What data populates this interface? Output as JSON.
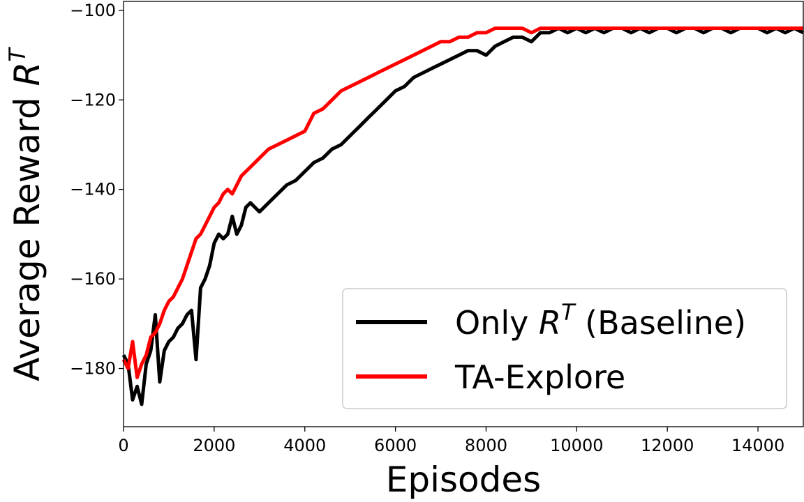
{
  "chart_data": {
    "type": "line",
    "xlabel": "Episodes",
    "ylabel": {
      "base": "Average Reward ",
      "var": "R",
      "sup": "T"
    },
    "xlim": [
      0,
      15000
    ],
    "ylim": [
      -193,
      -98
    ],
    "xticks": [
      0,
      2000,
      4000,
      6000,
      8000,
      10000,
      12000,
      14000
    ],
    "yticks": [
      -180,
      -160,
      -140,
      -120,
      -100
    ],
    "ytick_labels": [
      "−180",
      "−160",
      "−140",
      "−120",
      "−100"
    ],
    "grid": false,
    "legend_position": "lower-right",
    "series": [
      {
        "name_parts": {
          "pre": "Only ",
          "var": "R",
          "sup": "T",
          "post": " (Baseline)"
        },
        "color": "#000000",
        "x": [
          0,
          100,
          200,
          300,
          400,
          500,
          600,
          700,
          800,
          900,
          1000,
          1100,
          1200,
          1300,
          1400,
          1500,
          1600,
          1700,
          1800,
          1900,
          2000,
          2100,
          2200,
          2300,
          2400,
          2500,
          2600,
          2700,
          2800,
          2900,
          3000,
          3200,
          3400,
          3600,
          3800,
          4000,
          4200,
          4400,
          4600,
          4800,
          5000,
          5200,
          5400,
          5600,
          5800,
          6000,
          6200,
          6400,
          6600,
          6800,
          7000,
          7200,
          7400,
          7600,
          7800,
          8000,
          8200,
          8400,
          8600,
          8800,
          9000,
          9200,
          9400,
          9600,
          9800,
          10000,
          10200,
          10400,
          10600,
          10800,
          11000,
          11200,
          11400,
          11600,
          11800,
          12000,
          12200,
          12400,
          12600,
          12800,
          13000,
          13200,
          13400,
          13600,
          13800,
          14000,
          14200,
          14400,
          14600,
          14800,
          15000
        ],
        "values": [
          -177,
          -179,
          -187,
          -184,
          -188,
          -179,
          -176,
          -168,
          -183,
          -176,
          -174,
          -173,
          -171,
          -170,
          -168,
          -167,
          -178,
          -162,
          -160,
          -157,
          -152,
          -150,
          -151,
          -150,
          -146,
          -150,
          -148,
          -144,
          -143,
          -144,
          -145,
          -143,
          -141,
          -139,
          -138,
          -136,
          -134,
          -133,
          -131,
          -130,
          -128,
          -126,
          -124,
          -122,
          -120,
          -118,
          -117,
          -115,
          -114,
          -113,
          -112,
          -111,
          -110,
          -109,
          -109,
          -110,
          -108,
          -107,
          -106,
          -106,
          -107,
          -105,
          -105,
          -104,
          -105,
          -104,
          -105,
          -104,
          -105,
          -104,
          -104,
          -105,
          -104,
          -105,
          -104,
          -104,
          -105,
          -104,
          -104,
          -105,
          -104,
          -104,
          -105,
          -104,
          -104,
          -104,
          -105,
          -104,
          -105,
          -104,
          -105
        ]
      },
      {
        "name": "TA-Explore",
        "color": "#ff0000",
        "x": [
          0,
          100,
          200,
          300,
          400,
          500,
          600,
          700,
          800,
          900,
          1000,
          1100,
          1200,
          1300,
          1400,
          1500,
          1600,
          1700,
          1800,
          1900,
          2000,
          2100,
          2200,
          2300,
          2400,
          2500,
          2600,
          2700,
          2800,
          2900,
          3000,
          3200,
          3400,
          3600,
          3800,
          4000,
          4200,
          4400,
          4600,
          4800,
          5000,
          5200,
          5400,
          5600,
          5800,
          6000,
          6200,
          6400,
          6600,
          6800,
          7000,
          7200,
          7400,
          7600,
          7800,
          8000,
          8200,
          8400,
          8600,
          8800,
          9000,
          9200,
          9400,
          9600,
          9800,
          10000,
          10200,
          10400,
          10600,
          10800,
          11000,
          11200,
          11400,
          11600,
          11800,
          12000,
          12200,
          12400,
          12600,
          12800,
          13000,
          13200,
          13400,
          13600,
          13800,
          14000,
          14200,
          14400,
          14600,
          14800,
          15000
        ],
        "values": [
          -178,
          -180,
          -174,
          -182,
          -179,
          -177,
          -173,
          -172,
          -170,
          -167,
          -165,
          -164,
          -162,
          -160,
          -157,
          -154,
          -151,
          -150,
          -148,
          -146,
          -144,
          -143,
          -141,
          -140,
          -141,
          -139,
          -137,
          -136,
          -135,
          -134,
          -133,
          -131,
          -130,
          -129,
          -128,
          -127,
          -123,
          -122,
          -120,
          -118,
          -117,
          -116,
          -115,
          -114,
          -113,
          -112,
          -111,
          -110,
          -109,
          -108,
          -107,
          -107,
          -106,
          -106,
          -105,
          -105,
          -104,
          -104,
          -104,
          -104,
          -105,
          -104,
          -104,
          -104,
          -104,
          -104,
          -104,
          -104,
          -104,
          -104,
          -104,
          -104,
          -104,
          -104,
          -104,
          -104,
          -104,
          -104,
          -104,
          -104,
          -104,
          -104,
          -104,
          -104,
          -104,
          -104,
          -104,
          -104,
          -104,
          -104,
          -104
        ]
      }
    ]
  }
}
